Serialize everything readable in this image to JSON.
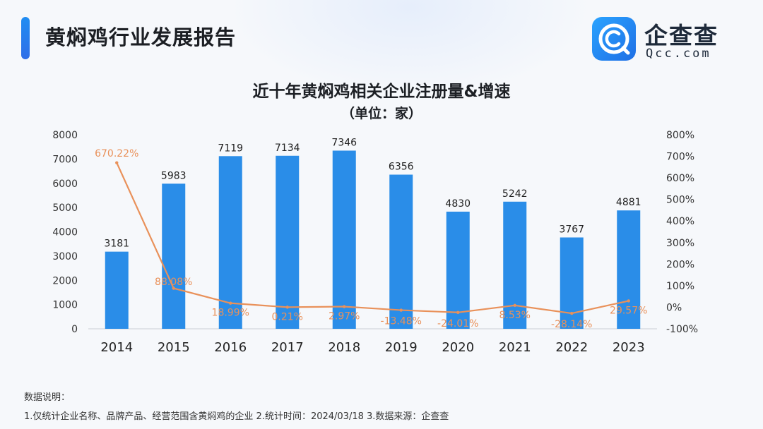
{
  "header": {
    "title": "黄焖鸡行业发展报告"
  },
  "brand": {
    "name": "企查查",
    "domain": "Qcc.com"
  },
  "chart_data": {
    "type": "bar",
    "title": "近十年黄焖鸡相关企业注册量&增速",
    "subtitle": "（单位：家）",
    "categories": [
      "2014",
      "2015",
      "2016",
      "2017",
      "2018",
      "2019",
      "2020",
      "2021",
      "2022",
      "2023"
    ],
    "series": [
      {
        "type": "bar",
        "values": [
          3181,
          5983,
          7119,
          7134,
          7346,
          6356,
          4830,
          5242,
          3767,
          4881
        ],
        "labels": [
          "3181",
          "5983",
          "7119",
          "7134",
          "7346",
          "6356",
          "4830",
          "5242",
          "3767",
          "4881"
        ],
        "color": "#2a8de8"
      },
      {
        "type": "line",
        "values": [
          670.22,
          88.08,
          18.99,
          0.21,
          2.97,
          -13.48,
          -24.01,
          8.53,
          -28.14,
          29.57
        ],
        "labels": [
          "670.22%",
          "88.08%",
          "18.99%",
          "0.21%",
          "2.97%",
          "-13.48%",
          "-24.01%",
          "8.53%",
          "-28.14%",
          "29.57%"
        ],
        "color": "#e9915a"
      }
    ],
    "y_left": {
      "ylim": [
        0,
        8000
      ],
      "ticks": [
        "0",
        "1000",
        "2000",
        "3000",
        "4000",
        "5000",
        "6000",
        "7000",
        "8000"
      ]
    },
    "y_right": {
      "ylim": [
        -100,
        800
      ],
      "ticks": [
        "-100%",
        "0%",
        "100%",
        "200%",
        "300%",
        "400%",
        "500%",
        "600%",
        "700%",
        "800%"
      ]
    },
    "grid": false,
    "legend": "none"
  },
  "notes": {
    "heading": "数据说明：",
    "line": "1.仅统计企业名称、品牌产品、经营范围含黄焖鸡的企业   2.统计时间：2024/03/18   3.数据来源：企查查"
  }
}
